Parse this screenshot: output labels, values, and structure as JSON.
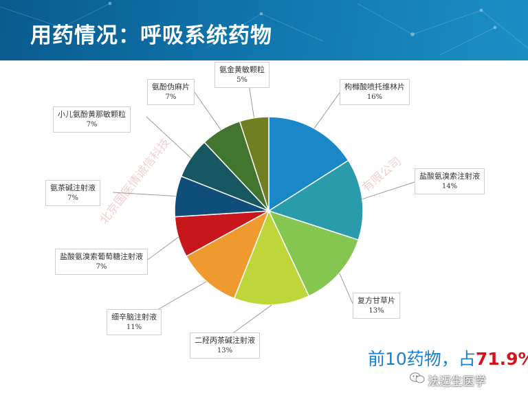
{
  "header": {
    "title": "用药情况：呼吸系统药物"
  },
  "chart_data": {
    "type": "pie",
    "categories": [
      "枸橼酸喷托维林片",
      "盐酸氨溴索注射液",
      "复方甘草片",
      "二羟丙茶碱注射液",
      "细辛脑注射液",
      "盐酸氨溴索葡萄糖注射液",
      "氨茶碱注射液",
      "小儿氨酚黄那敏颗粒",
      "氨酚伪麻片",
      "氨金黄敏颗粒"
    ],
    "values": [
      16,
      14,
      13,
      13,
      11,
      7,
      7,
      7,
      7,
      5
    ],
    "labels": [
      "16%",
      "14%",
      "13%",
      "13%",
      "11%",
      "7%",
      "7%",
      "7%",
      "7%",
      "5%"
    ],
    "colors": [
      "#1a87c9",
      "#2a9bab",
      "#85c650",
      "#bfd63b",
      "#ef9a2f",
      "#c8161d",
      "#0e4e78",
      "#175761",
      "#42762f",
      "#6f7f22"
    ]
  },
  "summary": {
    "prefix": "前10药物，占",
    "highlight": "71.9%"
  },
  "watermark": {
    "left": "北京国医情诚信科技",
    "right": "有限公司"
  },
  "brand": {
    "name": "法迈生医学",
    "icon": "wechat-icon"
  }
}
